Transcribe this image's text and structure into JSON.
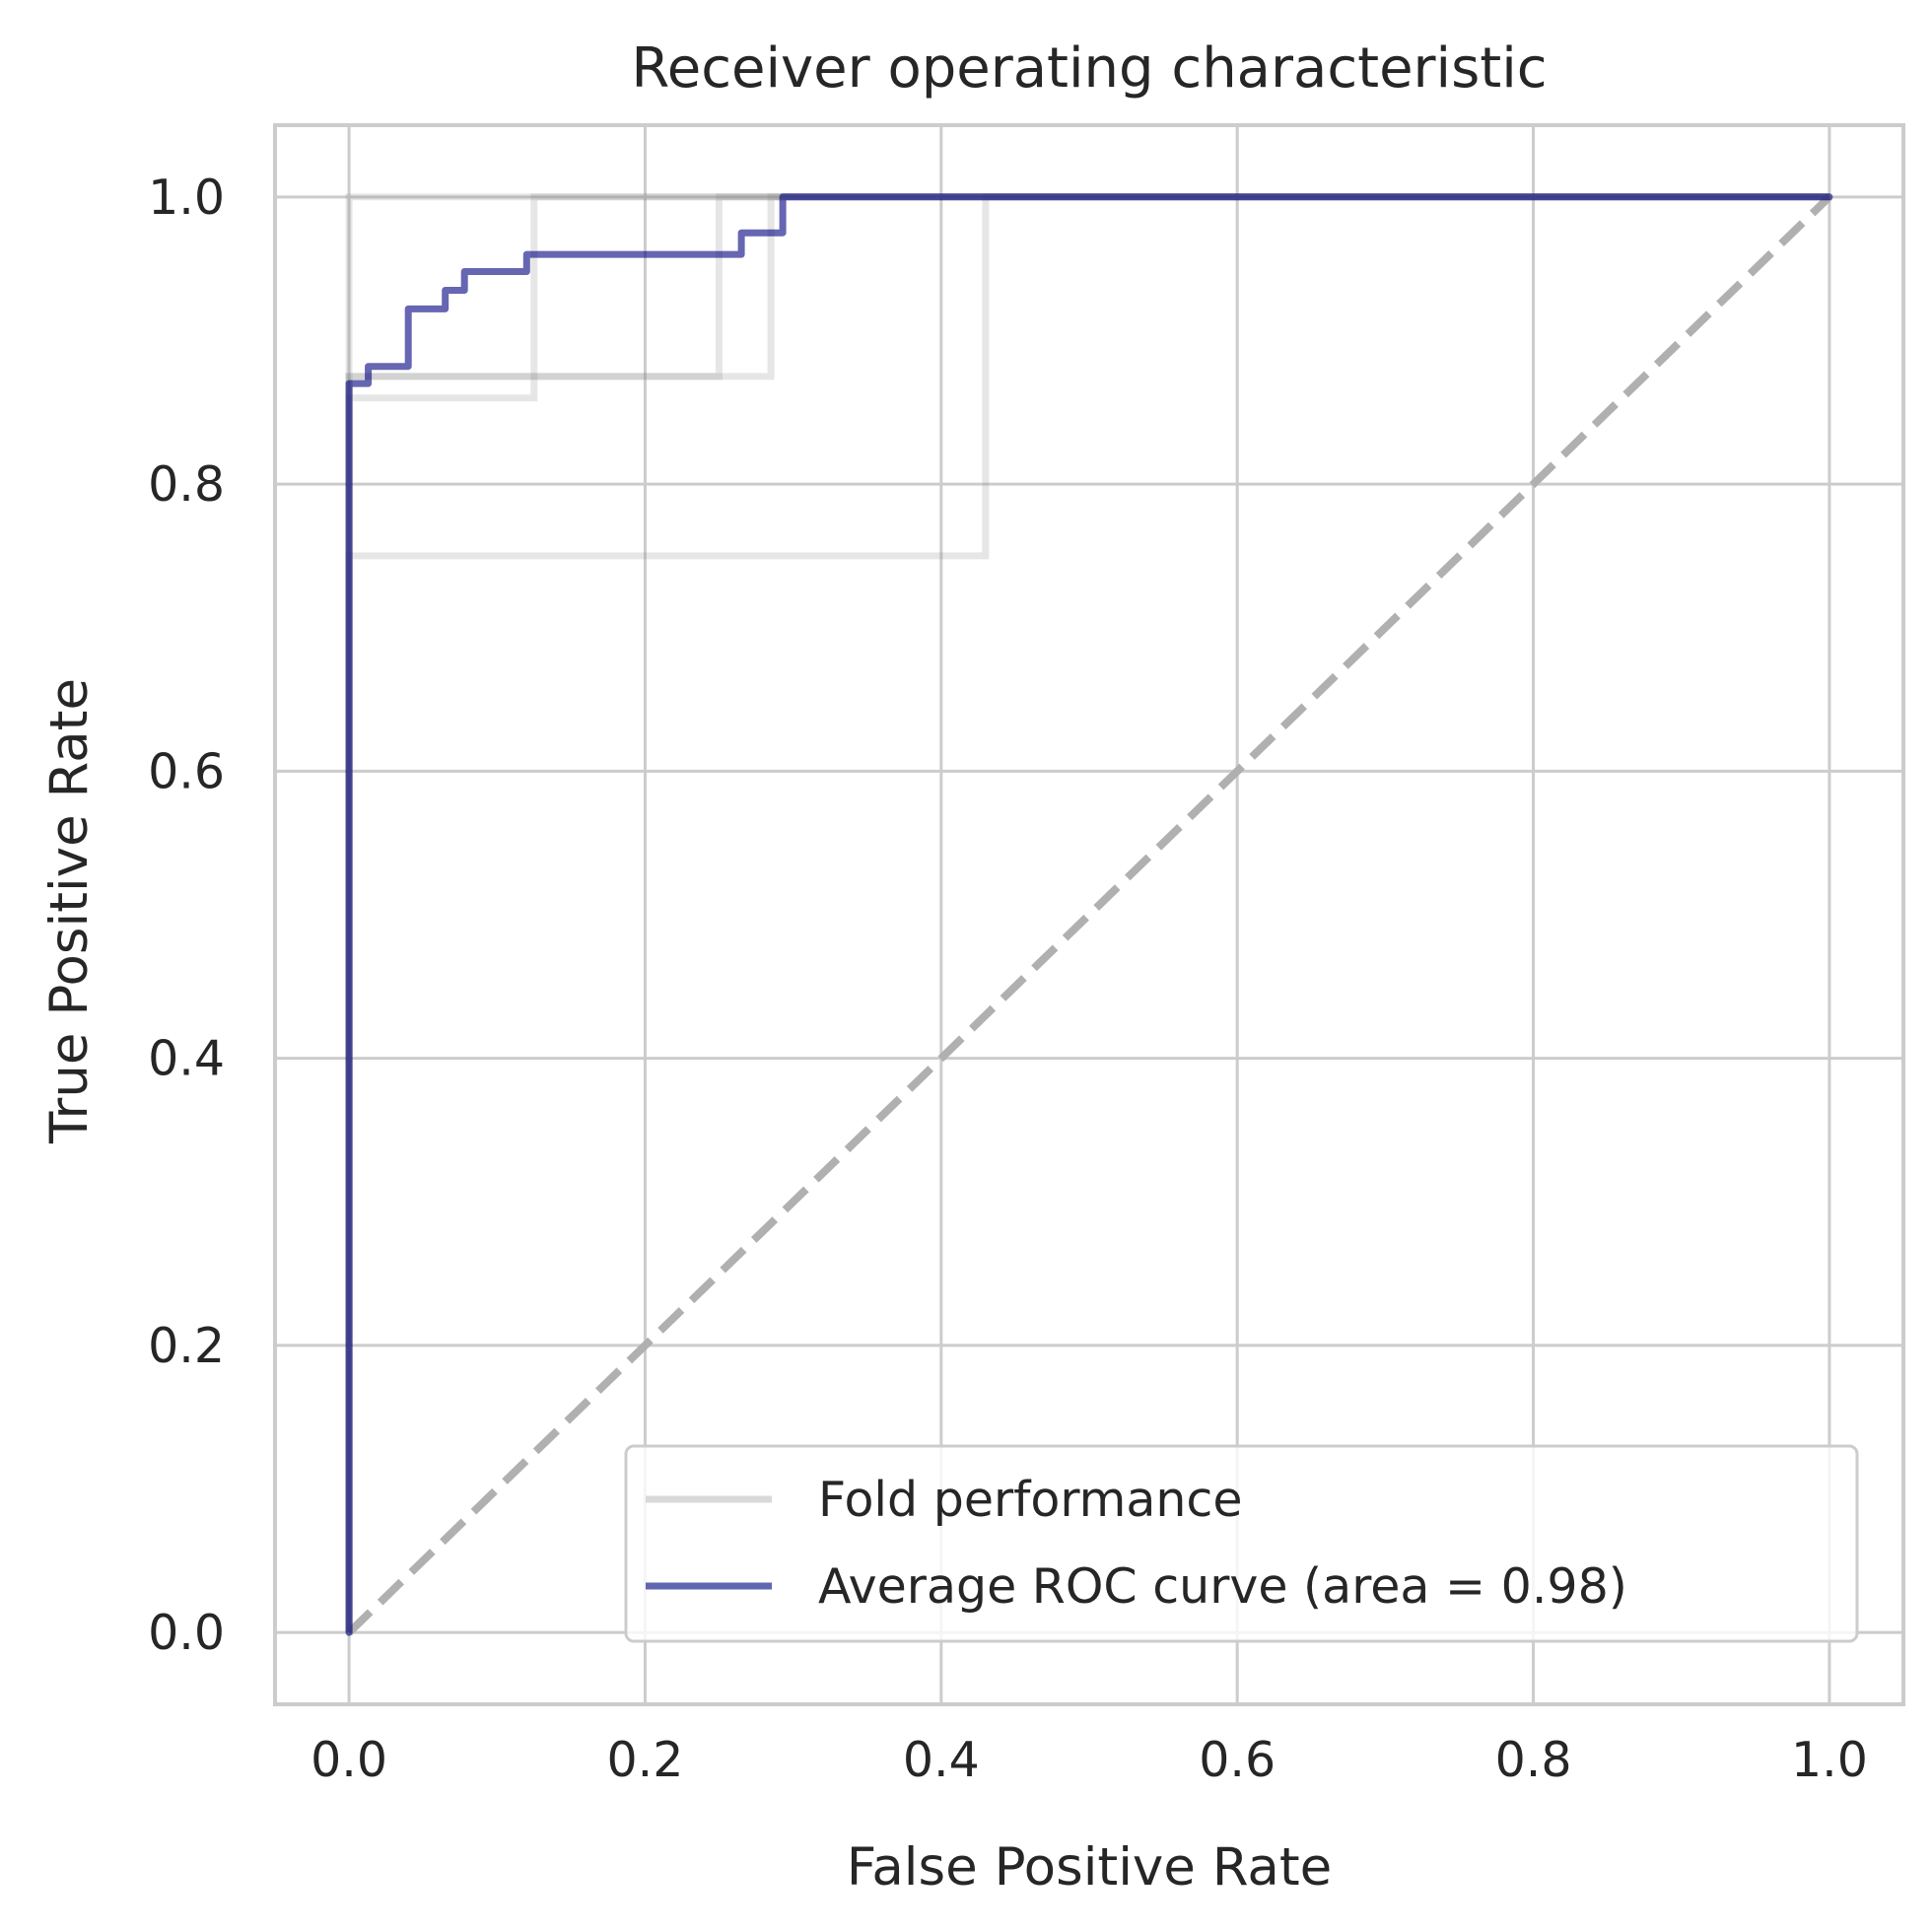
{
  "chart_data": {
    "type": "line",
    "title": "Receiver operating characteristic",
    "xlabel": "False Positive Rate",
    "ylabel": "True Positive Rate",
    "xlim": [
      -0.05,
      1.05
    ],
    "ylim": [
      -0.05,
      1.05
    ],
    "xticks": [
      "0.0",
      "0.2",
      "0.4",
      "0.6",
      "0.8",
      "1.0"
    ],
    "yticks": [
      "0.0",
      "0.2",
      "0.4",
      "0.6",
      "0.8",
      "1.0"
    ],
    "xtick_values": [
      0,
      0.2,
      0.4,
      0.6,
      0.8,
      1.0
    ],
    "ytick_values": [
      0,
      0.2,
      0.4,
      0.6,
      0.8,
      1.0
    ],
    "grid": true,
    "legend_position": "bottom-right",
    "colors": {
      "grid": "#cccccc",
      "spine": "#cccccc",
      "fold": "#d9d9d9",
      "average": "#3f3f95",
      "diagonal": "#b0b0b0"
    },
    "legend": [
      {
        "label": "Fold performance",
        "style": "fold"
      },
      {
        "label": "Average ROC curve (area = 0.98)",
        "style": "average"
      }
    ],
    "folds": [
      {
        "x": [
          0,
          0,
          0.125,
          0.125,
          1.0
        ],
        "y": [
          0,
          0.86,
          0.86,
          1.0,
          1.0
        ]
      },
      {
        "x": [
          0,
          0,
          0.25,
          0.25,
          1.0
        ],
        "y": [
          0,
          0.875,
          0.875,
          1.0,
          1.0
        ]
      },
      {
        "x": [
          0,
          0,
          0.285,
          0.285,
          1.0
        ],
        "y": [
          0,
          0.875,
          0.875,
          1.0,
          1.0
        ]
      },
      {
        "x": [
          0,
          0,
          0.43,
          0.43,
          1.0
        ],
        "y": [
          0,
          0.75,
          0.75,
          1.0,
          1.0
        ]
      },
      {
        "x": [
          0,
          0,
          1.0
        ],
        "y": [
          0,
          1.0,
          1.0
        ]
      }
    ],
    "series": [
      {
        "name": "Average ROC curve (area = 0.98)",
        "x": [
          0,
          0,
          0.013,
          0.013,
          0.04,
          0.04,
          0.065,
          0.065,
          0.078,
          0.078,
          0.12,
          0.12,
          0.265,
          0.265,
          0.293,
          0.293,
          1.0
        ],
        "y": [
          0,
          0.87,
          0.87,
          0.882,
          0.882,
          0.922,
          0.922,
          0.935,
          0.935,
          0.948,
          0.948,
          0.96,
          0.96,
          0.975,
          0.975,
          1.0,
          1.0
        ]
      }
    ],
    "diagonal": {
      "x": [
        0,
        1
      ],
      "y": [
        0,
        1
      ]
    }
  }
}
